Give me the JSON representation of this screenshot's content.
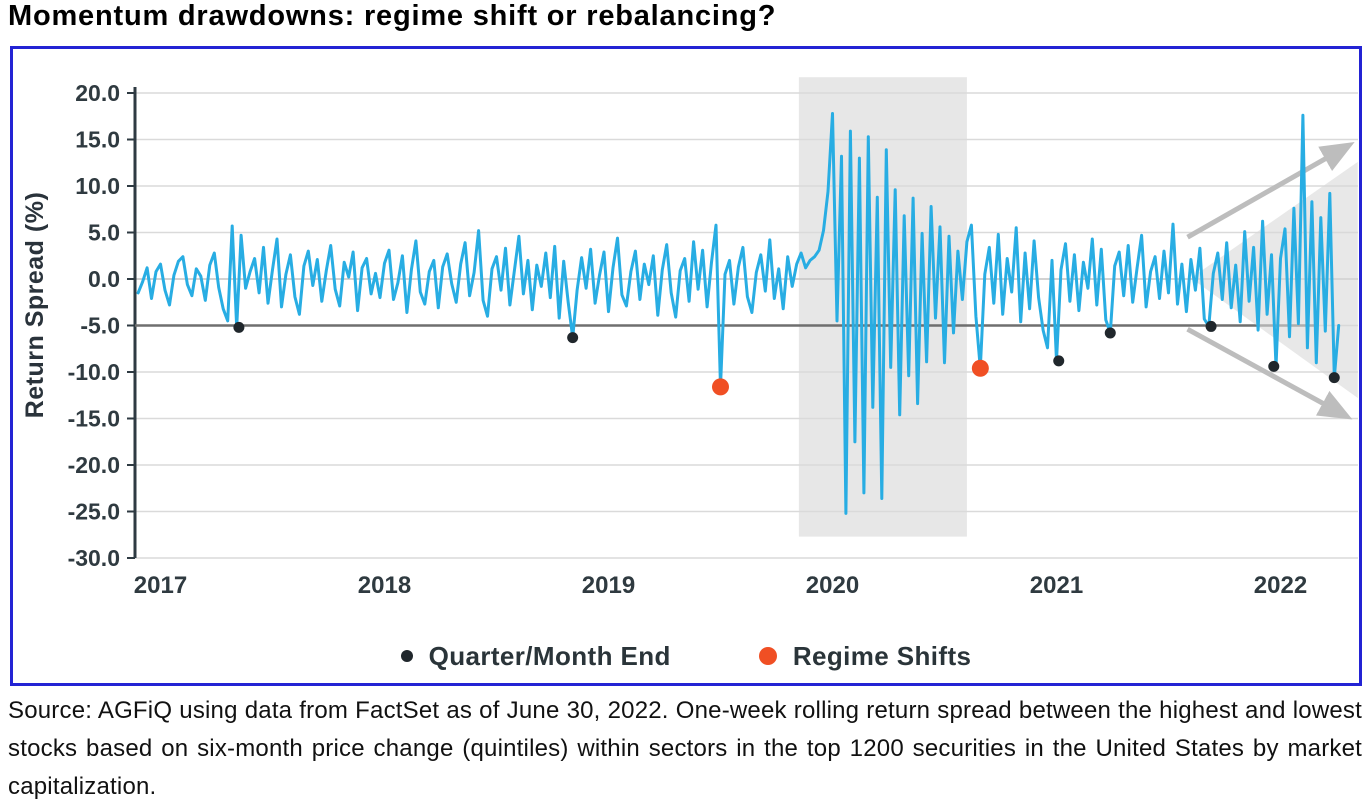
{
  "title": "Momentum drawdowns: regime shift or rebalancing?",
  "source_note": "Source: AGFiQ using data from FactSet as of June 30, 2022. One-week rolling return spread between the highest and lowest stocks based on six-month price change (quintiles) within sectors in the top 1200 securities in the United States by market capitalization.",
  "legend": {
    "items": [
      {
        "label": "Quarter/Month End",
        "marker": "black-dot"
      },
      {
        "label": "Regime Shifts",
        "marker": "orange-dot"
      }
    ]
  },
  "colors": {
    "line": "#28ADE3",
    "quarter_dot": "#20272C",
    "regime_dot": "#F04F24",
    "frame": "#2323D4",
    "band": "#E7E7E7",
    "wedge": "#D9D9D9",
    "arrow": "#BDBDBD",
    "grid": "#DADADA",
    "zero_line": "#C3C3C3",
    "ref_line": "#6F6F6F",
    "axis": "#2E3A42",
    "text_dark": "#2A333B"
  },
  "chart_data": {
    "type": "line",
    "ylabel": "Return Spread (%)",
    "ylim": [
      -30,
      20
    ],
    "xlim": [
      2016.89,
      2022.35
    ],
    "y_ticks": [
      20,
      15,
      10,
      5,
      0,
      -5,
      -10,
      -15,
      -20,
      -25,
      -30
    ],
    "x_tick_years": [
      2017,
      2018,
      2019,
      2020,
      2021,
      2022
    ],
    "x_tick_labels": [
      "2017",
      "2018",
      "2019",
      "2020",
      "2021",
      "2022"
    ],
    "grid": true,
    "reference_line": {
      "y": -5,
      "x_end": 2022.15
    },
    "shaded_region": {
      "x_range": [
        2019.85,
        2020.6
      ],
      "y_range": [
        -27.7,
        21.7
      ]
    },
    "expanding_range_shape": {
      "points": [
        [
          2021.6,
          0.1
        ],
        [
          2022.345,
          12.6
        ],
        [
          2022.345,
          -12.8
        ]
      ]
    },
    "trend_arrows": [
      {
        "from": [
          2021.585,
          4.5
        ],
        "to": [
          2022.3,
          14.3
        ],
        "direction": "up"
      },
      {
        "from": [
          2021.585,
          -5.4
        ],
        "to": [
          2022.29,
          -14.7
        ],
        "direction": "down"
      }
    ],
    "series": {
      "name": "One-week rolling return spread",
      "x_start": 2016.9,
      "x_step": 0.02,
      "values": [
        -1.5,
        -0.3,
        1.2,
        -2.1,
        0.8,
        1.6,
        -1.2,
        -2.8,
        0.4,
        1.9,
        2.4,
        -0.6,
        -1.8,
        1.1,
        0.3,
        -2.3,
        1.5,
        2.8,
        -0.9,
        -3.2,
        -4.5,
        5.7,
        -5.2,
        4.7,
        -1.0,
        0.8,
        2.2,
        -1.5,
        3.4,
        -2.6,
        1.0,
        4.3,
        -3.0,
        0.5,
        2.6,
        -1.9,
        -3.8,
        1.4,
        3.0,
        -0.7,
        2.1,
        -2.4,
        0.9,
        3.6,
        -1.1,
        -2.9,
        1.8,
        0.2,
        2.9,
        -3.4,
        1.2,
        2.2,
        -1.6,
        0.6,
        -2.0,
        1.7,
        3.1,
        -2.2,
        -0.4,
        2.5,
        -3.6,
        1.0,
        4.1,
        -1.4,
        -2.7,
        0.8,
        2.0,
        -3.1,
        1.3,
        2.7,
        -0.5,
        -2.5,
        1.6,
        3.9,
        -1.8,
        0.7,
        5.2,
        -2.3,
        -4.0,
        1.1,
        2.4,
        -1.2,
        3.3,
        -2.8,
        0.9,
        4.6,
        -1.6,
        2.0,
        -3.3,
        1.5,
        -0.8,
        2.8,
        -2.0,
        3.5,
        -4.2,
        1.9,
        -2.5,
        -6.3,
        -1.2,
        2.3,
        -1.0,
        3.2,
        -2.6,
        0.4,
        2.9,
        -3.5,
        1.2,
        4.4,
        -1.7,
        -2.9,
        0.8,
        3.0,
        -2.2,
        1.6,
        -0.6,
        2.5,
        -3.9,
        1.0,
        3.7,
        -1.5,
        -4.1,
        0.9,
        2.2,
        -2.4,
        4.0,
        -1.1,
        3.1,
        -3.0,
        1.8,
        5.8,
        -11.6,
        0.5,
        2.0,
        -2.7,
        1.3,
        3.4,
        -1.9,
        -3.6,
        0.7,
        2.6,
        -1.3,
        4.2,
        -2.1,
        1.1,
        -3.2,
        2.4,
        -0.8,
        1.6,
        2.8,
        1.2,
        2.0,
        2.4,
        3.1,
        5.2,
        9.4,
        17.8,
        -4.5,
        13.2,
        -25.2,
        15.9,
        -17.5,
        13.0,
        -23.0,
        15.3,
        -13.8,
        8.8,
        -23.6,
        13.9,
        -9.5,
        9.6,
        -14.6,
        6.8,
        -10.4,
        8.7,
        -13.4,
        4.9,
        -8.9,
        7.8,
        -4.2,
        5.6,
        -9.0,
        4.6,
        -5.8,
        3.0,
        -2.2,
        4.0,
        5.8,
        -4.0,
        -9.6,
        0.5,
        3.4,
        -2.6,
        4.8,
        -3.8,
        2.2,
        -1.4,
        5.5,
        -4.6,
        2.8,
        -3.2,
        4.1,
        -2.0,
        -5.5,
        -7.4,
        2.0,
        -8.8,
        1.0,
        3.8,
        -2.4,
        2.6,
        -3.4,
        1.8,
        -1.0,
        4.3,
        -2.8,
        3.2,
        -4.4,
        -5.8,
        1.4,
        2.9,
        -1.8,
        3.6,
        -2.5,
        1.2,
        4.7,
        -3.0,
        0.8,
        2.4,
        -2.1,
        3.0,
        -1.5,
        5.9,
        -2.7,
        1.6,
        -3.5,
        2.1,
        -1.2,
        3.3,
        -4.3,
        -5.1,
        0.6,
        2.8,
        -2.2,
        3.9,
        -3.1,
        1.5,
        -4.6,
        5.1,
        -2.4,
        3.4,
        -5.5,
        6.2,
        -3.8,
        2.6,
        -9.4,
        2.2,
        5.4,
        -6.2,
        7.6,
        -4.8,
        17.6,
        -7.4,
        8.3,
        -9.0,
        6.6,
        -5.6,
        9.2,
        -10.6,
        -5.0
      ]
    },
    "quarter_month_end_points": [
      {
        "x": 2017.35,
        "y": -5.2
      },
      {
        "x": 2018.84,
        "y": -6.3
      },
      {
        "x": 2021.01,
        "y": -8.8
      },
      {
        "x": 2021.24,
        "y": -5.8
      },
      {
        "x": 2021.69,
        "y": -5.1
      },
      {
        "x": 2021.97,
        "y": -9.4
      },
      {
        "x": 2022.24,
        "y": -10.6
      }
    ],
    "regime_shift_points": [
      {
        "x": 2019.5,
        "y": -11.6
      },
      {
        "x": 2020.66,
        "y": -9.6
      }
    ]
  }
}
